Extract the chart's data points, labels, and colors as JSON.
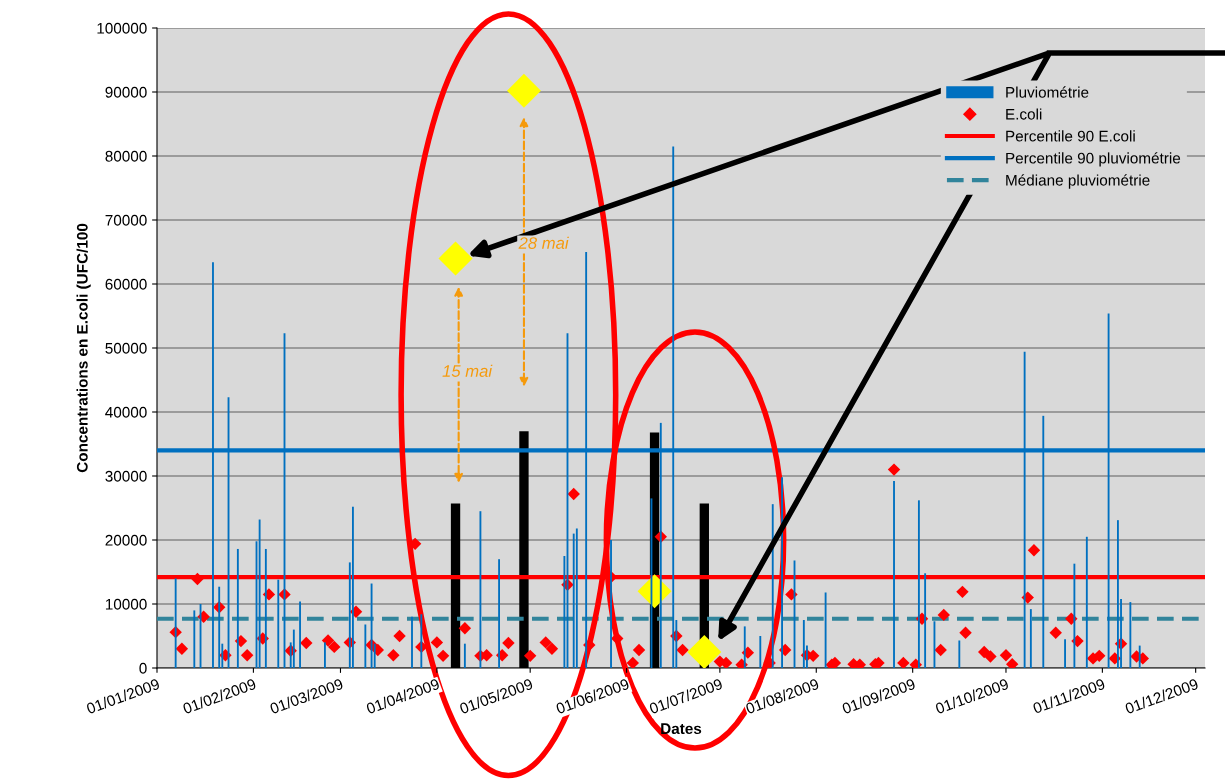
{
  "chart_data": {
    "type": "bar",
    "ylabel": "Concentrations en E.coli (UFC/100",
    "xlabel": "Dates",
    "xlim": [
      "2009-01-01",
      "2009-12-04"
    ],
    "xticks": [
      {
        "value": "2009-01-01",
        "label": "01/01/2009"
      },
      {
        "value": "2009-02-01",
        "label": "01/02/2009"
      },
      {
        "value": "2009-03-01",
        "label": "01/03/2009"
      },
      {
        "value": "2009-04-01",
        "label": "01/04/2009"
      },
      {
        "value": "2009-05-01",
        "label": "01/05/2009"
      },
      {
        "value": "2009-06-01",
        "label": "01/06/2009"
      },
      {
        "value": "2009-07-01",
        "label": "01/07/2009"
      },
      {
        "value": "2009-08-01",
        "label": "01/08/2009"
      },
      {
        "value": "2009-09-01",
        "label": "01/09/2009"
      },
      {
        "value": "2009-10-01",
        "label": "01/10/2009"
      },
      {
        "value": "2009-11-01",
        "label": "01/11/2009"
      },
      {
        "value": "2009-12-01",
        "label": "01/12/2009"
      }
    ],
    "ylim": [
      0,
      100000
    ],
    "yticks": [
      0,
      10000,
      20000,
      30000,
      40000,
      50000,
      60000,
      70000,
      80000,
      90000,
      100000
    ],
    "grid": "y",
    "legend": "top right",
    "series": [
      {
        "name": "Pluviométrie",
        "color": "#0070c0",
        "x": [
          "2009-01-07",
          "2009-01-13",
          "2009-01-15",
          "2009-01-19",
          "2009-01-21",
          "2009-01-22",
          "2009-01-24",
          "2009-01-27",
          "2009-02-02",
          "2009-02-03",
          "2009-02-05",
          "2009-02-09",
          "2009-02-11",
          "2009-02-13",
          "2009-02-14",
          "2009-02-16",
          "2009-02-24",
          "2009-03-04",
          "2009-03-05",
          "2009-03-09",
          "2009-03-11",
          "2009-03-12",
          "2009-03-24",
          "2009-03-27",
          "2009-04-10",
          "2009-04-15",
          "2009-04-21",
          "2009-05-12",
          "2009-05-13",
          "2009-05-15",
          "2009-05-16",
          "2009-05-19",
          "2009-05-27",
          "2009-06-09",
          "2009-06-12",
          "2009-06-16",
          "2009-06-17",
          "2009-07-09",
          "2009-07-14",
          "2009-07-18",
          "2009-07-21",
          "2009-07-25",
          "2009-07-28",
          "2009-07-29",
          "2009-08-04",
          "2009-08-26",
          "2009-09-03",
          "2009-09-05",
          "2009-09-08",
          "2009-09-16",
          "2009-10-07",
          "2009-10-09",
          "2009-10-13",
          "2009-10-20",
          "2009-10-23",
          "2009-10-27",
          "2009-11-03",
          "2009-11-06",
          "2009-11-07",
          "2009-11-10",
          "2009-11-13"
        ],
        "values": [
          14000,
          9000,
          10000,
          63400,
          12700,
          3800,
          42300,
          18600,
          19800,
          23200,
          18600,
          13800,
          52300,
          4000,
          6000,
          10400,
          4000,
          16500,
          25200,
          6800,
          13200,
          3800,
          8000,
          8400,
          3800,
          24500,
          17000,
          17500,
          52300,
          21000,
          21800,
          65000,
          20000,
          26500,
          38300,
          81500,
          7500,
          6500,
          5000,
          25600,
          29800,
          16800,
          7500,
          3500,
          11800,
          29200,
          26200,
          14800,
          7300,
          4300,
          49400,
          9200,
          39400,
          4500,
          16300,
          20500,
          55400,
          23100,
          10800,
          10300,
          3500
        ]
      },
      {
        "name": "E.coli",
        "type": "scatter",
        "marker": "diamond",
        "color": "#ff0000",
        "x": [
          "2009-01-07",
          "2009-01-09",
          "2009-01-14",
          "2009-01-16",
          "2009-01-21",
          "2009-01-23",
          "2009-01-28",
          "2009-01-30",
          "2009-02-04",
          "2009-02-06",
          "2009-02-11",
          "2009-02-13",
          "2009-02-18",
          "2009-02-25",
          "2009-02-27",
          "2009-03-04",
          "2009-03-06",
          "2009-03-11",
          "2009-03-13",
          "2009-03-18",
          "2009-03-20",
          "2009-03-25",
          "2009-03-27",
          "2009-04-01",
          "2009-04-03",
          "2009-04-10",
          "2009-04-15",
          "2009-04-17",
          "2009-04-22",
          "2009-04-24",
          "2009-05-01",
          "2009-05-06",
          "2009-05-08",
          "2009-05-13",
          "2009-05-15",
          "2009-05-20",
          "2009-05-27",
          "2009-05-29",
          "2009-06-03",
          "2009-06-05",
          "2009-06-12",
          "2009-06-17",
          "2009-06-19",
          "2009-07-01",
          "2009-07-03",
          "2009-07-08",
          "2009-07-10",
          "2009-07-17",
          "2009-07-22",
          "2009-07-24",
          "2009-07-29",
          "2009-07-31",
          "2009-08-06",
          "2009-08-07",
          "2009-08-13",
          "2009-08-15",
          "2009-08-20",
          "2009-08-21",
          "2009-08-26",
          "2009-08-29",
          "2009-09-02",
          "2009-09-04",
          "2009-09-10",
          "2009-09-11",
          "2009-09-17",
          "2009-09-18",
          "2009-09-24",
          "2009-09-26",
          "2009-10-01",
          "2009-10-03",
          "2009-10-08",
          "2009-10-10",
          "2009-10-17",
          "2009-10-22",
          "2009-10-24",
          "2009-10-29",
          "2009-10-31",
          "2009-11-05",
          "2009-11-07",
          "2009-11-12",
          "2009-11-14"
        ],
        "values": [
          5600,
          3000,
          13900,
          8000,
          9500,
          2000,
          4200,
          2000,
          4600,
          11500,
          11500,
          2700,
          3900,
          4300,
          3300,
          4000,
          8800,
          3600,
          2800,
          2000,
          5000,
          19400,
          3300,
          4000,
          1900,
          6200,
          1900,
          2000,
          2000,
          3900,
          1900,
          4000,
          3000,
          13000,
          27200,
          3600,
          14200,
          4600,
          800,
          2800,
          20500,
          5000,
          2800,
          1000,
          800,
          500,
          2400,
          800,
          2800,
          11500,
          2000,
          1900,
          500,
          800,
          600,
          500,
          600,
          800,
          31000,
          800,
          500,
          7700,
          2800,
          8300,
          11900,
          5500,
          2500,
          1800,
          2000,
          600,
          11000,
          18400,
          5500,
          7700,
          4200,
          1500,
          1900,
          1500,
          3800,
          1800,
          1500
        ]
      },
      {
        "color": "#000000",
        "x": [
          "2009-04-07",
          "2009-04-29",
          "2009-06-10",
          "2009-06-26"
        ],
        "values": [
          25700,
          37000,
          36800,
          25700
        ]
      },
      {
        "type": "scatter",
        "marker": "diamond",
        "color": "#ffff00",
        "x": [
          "2009-04-07",
          "2009-04-29",
          "2009-06-10",
          "2009-06-26"
        ],
        "values": [
          64000,
          90200,
          12000,
          2500
        ]
      }
    ],
    "ref_lines": [
      {
        "axis": "y",
        "value": 14200,
        "label": "Percentile 90 E.coli",
        "color": "#ff0000",
        "line_style": "solid"
      },
      {
        "axis": "y",
        "value": 34000,
        "label": "Percentile 90 pluviométrie",
        "color": "#0070c0",
        "line_style": "solid"
      },
      {
        "axis": "y",
        "value": 7700,
        "label": "Médiane pluviométrie",
        "color": "#31849b",
        "line_style": "dashed"
      }
    ],
    "annotations": [
      "15 mai",
      "28 mai"
    ]
  }
}
